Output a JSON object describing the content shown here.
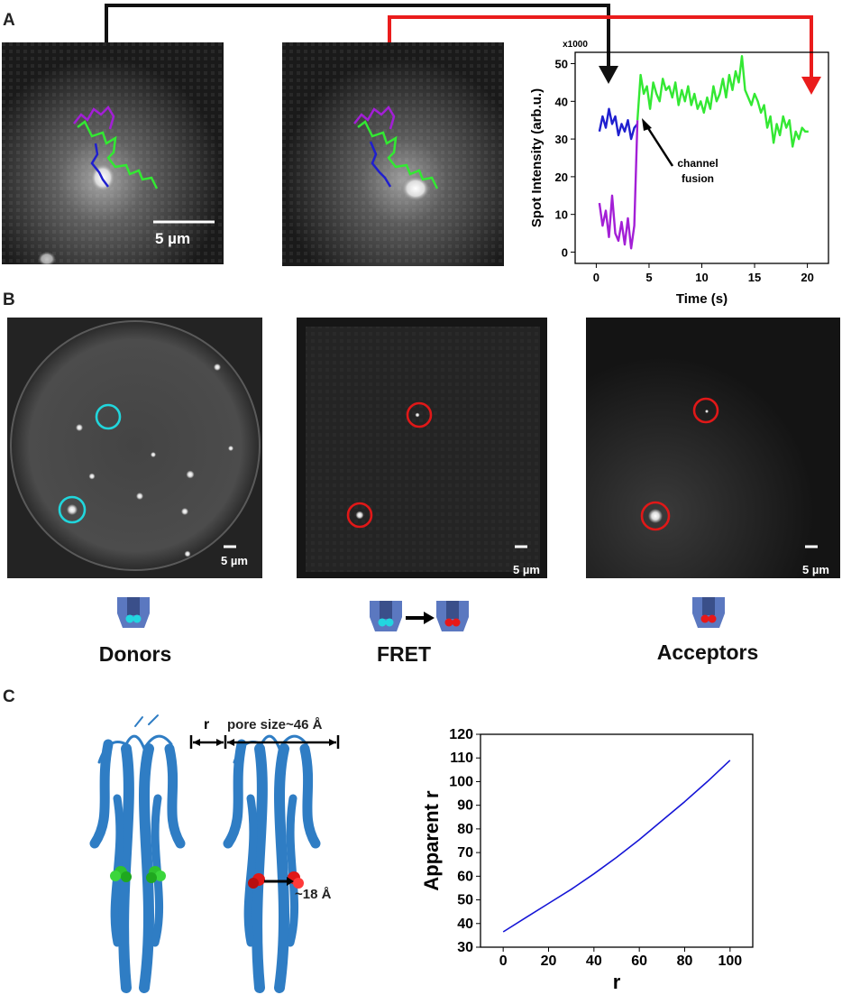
{
  "panels": {
    "a": "A",
    "b": "B",
    "c": "C"
  },
  "panel_a": {
    "scale_bar": "5 µm",
    "annotation": {
      "line1": "channel",
      "line2": "fusion"
    },
    "chart_data": {
      "type": "line",
      "xlabel": "Time (s)",
      "ylabel": "Spot Intensity (arb.u.)",
      "y_multiplier": "x1000",
      "xlim": [
        -2,
        22
      ],
      "ylim": [
        -3,
        53
      ],
      "xticks": [
        0,
        5,
        10,
        15,
        20
      ],
      "yticks": [
        0,
        10,
        20,
        30,
        40,
        50
      ],
      "series": [
        {
          "color": "#1f1fcf",
          "x": [
            0.3,
            0.6,
            0.9,
            1.2,
            1.5,
            1.8,
            2.1,
            2.4,
            2.7,
            3.0,
            3.3,
            3.6,
            3.9
          ],
          "y": [
            32,
            36,
            33,
            38,
            34,
            36,
            31,
            34,
            32,
            35,
            30,
            33,
            34
          ]
        },
        {
          "color": "#a31fd6",
          "x": [
            0.3,
            0.6,
            0.9,
            1.2,
            1.5,
            1.8,
            2.1,
            2.4,
            2.7,
            3.0,
            3.3,
            3.6,
            3.9
          ],
          "y": [
            13,
            7,
            11,
            4,
            15,
            5,
            3,
            8,
            2,
            9,
            1,
            7,
            35
          ]
        },
        {
          "color": "#33e833",
          "x": [
            3.9,
            4.2,
            4.5,
            4.8,
            5.1,
            5.4,
            5.7,
            6.0,
            6.3,
            6.6,
            6.9,
            7.2,
            7.5,
            7.8,
            8.1,
            8.4,
            8.7,
            9.0,
            9.3,
            9.6,
            9.9,
            10.2,
            10.5,
            10.8,
            11.1,
            11.4,
            11.7,
            12.0,
            12.3,
            12.6,
            12.9,
            13.2,
            13.5,
            13.8,
            14.1,
            14.4,
            14.7,
            15.0,
            15.3,
            15.6,
            15.9,
            16.2,
            16.5,
            16.8,
            17.1,
            17.4,
            17.7,
            18.0,
            18.3,
            18.6,
            18.9,
            19.2,
            19.5,
            19.8,
            20.1
          ],
          "y": [
            35,
            47,
            42,
            44,
            38,
            45,
            42,
            40,
            46,
            43,
            44,
            41,
            45,
            39,
            43,
            40,
            44,
            39,
            42,
            38,
            40,
            37,
            41,
            38,
            44,
            40,
            42,
            46,
            41,
            47,
            43,
            48,
            45,
            52,
            43,
            41,
            39,
            42,
            40,
            37,
            39,
            33,
            36,
            29,
            34,
            31,
            36,
            33,
            35,
            28,
            32,
            30,
            33,
            32,
            32
          ]
        }
      ]
    }
  },
  "panel_b": {
    "images": [
      {
        "caption": "Donors",
        "scale": "5 µm"
      },
      {
        "caption": "FRET",
        "scale": "5 µm"
      },
      {
        "caption": "Acceptors",
        "scale": "5 µm"
      }
    ]
  },
  "panel_c": {
    "r_label": "r",
    "pore_label": "pore size~46 Å",
    "distance_label": "~18 Å",
    "chart_data": {
      "type": "line",
      "xlabel": "r",
      "ylabel": "Apparent r",
      "xlim": [
        -10,
        110
      ],
      "ylim": [
        30,
        120
      ],
      "xticks": [
        0,
        20,
        40,
        60,
        80,
        100
      ],
      "yticks": [
        30,
        40,
        50,
        60,
        70,
        80,
        90,
        100,
        110,
        120
      ],
      "series": [
        {
          "color": "#1515d6",
          "x": [
            0,
            10,
            20,
            30,
            40,
            50,
            60,
            70,
            80,
            90,
            100
          ],
          "y": [
            36.5,
            42.5,
            48.5,
            54.5,
            61,
            68,
            75.5,
            83.5,
            91.5,
            100,
            109
          ]
        }
      ]
    }
  }
}
